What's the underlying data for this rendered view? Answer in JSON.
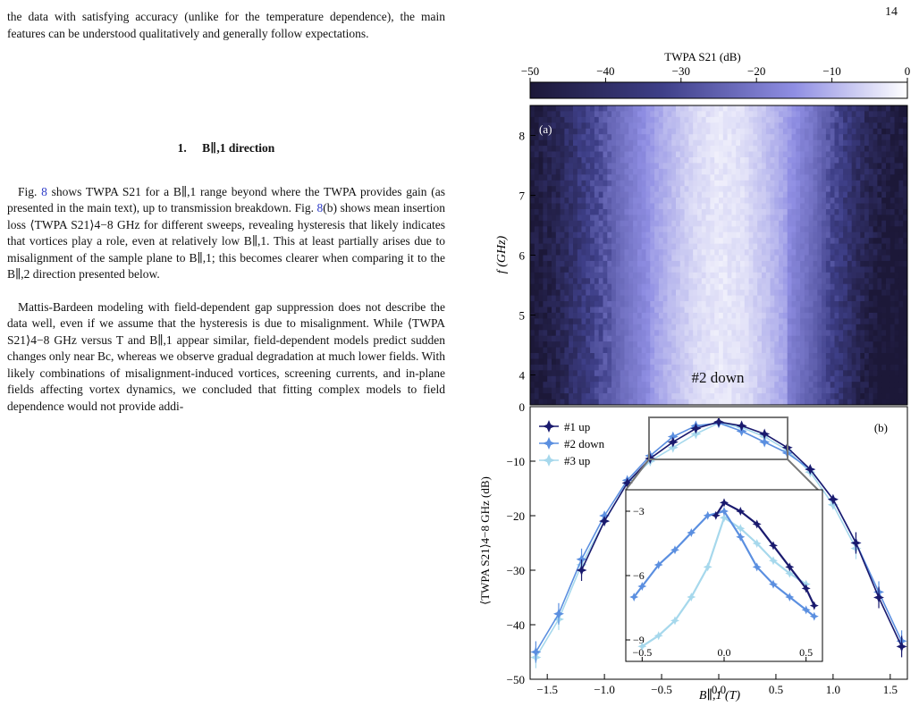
{
  "page_number": "14",
  "text": {
    "p_intro": "the data with satisfying accuracy (unlike for the temperature dependence), the main features can be understood qualitatively and generally follow expectations.",
    "section_num": "1.",
    "section_title": "B∥,1 direction",
    "p1_a": "Fig. ",
    "p1_ref": "8",
    "p1_b": " shows TWPA S21 for a B∥,1 range beyond where the TWPA provides gain (as presented in the main text), up to transmission breakdown. Fig. ",
    "p1_ref2": "8",
    "p1_c": "(b) shows mean insertion loss ⟨TWPA S21⟩4−8 GHz for different sweeps, revealing hysteresis that likely indicates that vortices play a role, even at relatively low B∥,1. This at least partially arises due to misalignment of the sample plane to B∥,1; this becomes clearer when comparing it to the B∥,2 direction presented below.",
    "p2": "Mattis-Bardeen modeling with field-dependent gap suppression does not describe the data well, even if we assume that the hysteresis is due to misalignment. While ⟨TWPA S21⟩4−8 GHz versus T and B∥,1 appear similar, field-dependent models predict sudden changes only near Bc, whereas we observe gradual degradation at much lower fields. With likely combinations of misalignment-induced vortices, screening currents, and in-plane fields affecting vortex dynamics, we concluded that fitting complex models to field dependence would not provide addi-"
  },
  "colorbar": {
    "title": "TWPA S21 (dB)",
    "ticks": [
      "−50",
      "−40",
      "−30",
      "−20",
      "−10",
      "0"
    ],
    "range": [
      -50,
      0
    ],
    "colors": [
      "#1c1838",
      "#3e3f88",
      "#8f8ee3",
      "#ffffff"
    ]
  },
  "panel_a": {
    "label": "(a)",
    "annotation": "#2 down",
    "ylabel": "f (GHz)",
    "yticks": [
      "4",
      "5",
      "6",
      "7",
      "8"
    ]
  },
  "panel_b": {
    "label": "(b)",
    "ylabel": "⟨TWPA S21⟩4−8 GHz (dB)",
    "xlabel": "B∥,1 (T)",
    "xticks": [
      "−1.5",
      "−1.0",
      "−0.5",
      "0.0",
      "0.5",
      "1.0",
      "1.5"
    ],
    "yticks": [
      "0",
      "−10",
      "−20",
      "−30",
      "−40",
      "−50"
    ],
    "legend": [
      "#1 up",
      "#2 down",
      "#3 up"
    ],
    "series_colors": [
      "#1a1a6e",
      "#5b8fe0",
      "#a6d8ec"
    ],
    "inset_xticks": [
      "−0.5",
      "0.0",
      "0.5"
    ],
    "inset_yticks": [
      "−3",
      "−6",
      "−9"
    ]
  },
  "chart_data": [
    {
      "type": "heatmap",
      "label": "(a)",
      "annotation": "#2 down",
      "xlabel": "",
      "ylabel": "f (GHz)",
      "xlim": [
        -1.6,
        1.6
      ],
      "ylim": [
        3.5,
        8.5
      ],
      "colorbar_label": "TWPA S21 (dB)",
      "zlim": [
        -50,
        0
      ],
      "profile_x": [
        -1.6,
        -1.4,
        -1.2,
        -1.0,
        -0.8,
        -0.6,
        -0.4,
        -0.2,
        0.0,
        0.2,
        0.4,
        0.6,
        0.8,
        1.0,
        1.2,
        1.4,
        1.6
      ],
      "profile_z_dB": [
        -48,
        -44,
        -36,
        -28,
        -20,
        -14,
        -9,
        -5,
        -3,
        -4,
        -8,
        -13,
        -20,
        -30,
        -40,
        -46,
        -48
      ]
    },
    {
      "type": "line",
      "label": "(b)",
      "xlabel": "B∥,1 (T)",
      "ylabel": "⟨TWPA S21⟩4−8 GHz (dB)",
      "xlim": [
        -1.65,
        1.65
      ],
      "ylim": [
        -50,
        0
      ],
      "legend_loc": "upper left",
      "series": [
        {
          "name": "#1 up",
          "x": [
            -1.2,
            -1.0,
            -0.8,
            -0.6,
            -0.4,
            -0.2,
            0.0,
            0.2,
            0.4,
            0.6,
            0.8,
            1.0,
            1.2,
            1.4,
            1.6
          ],
          "y": [
            -30,
            -21,
            -14,
            -9.5,
            -6.5,
            -4,
            -2.8,
            -3.5,
            -5,
            -7.5,
            -11.5,
            -17,
            -25,
            -35,
            -44
          ]
        },
        {
          "name": "#2 down",
          "x": [
            -1.6,
            -1.4,
            -1.2,
            -1.0,
            -0.8,
            -0.6,
            -0.4,
            -0.2,
            0.0,
            0.2,
            0.4,
            0.6,
            0.8,
            1.0,
            1.2,
            1.4,
            1.6
          ],
          "y": [
            -45,
            -38,
            -28,
            -20,
            -13.5,
            -9,
            -5.5,
            -3.5,
            -3,
            -4.5,
            -6.5,
            -8.5,
            -11.5,
            -17,
            -25,
            -34,
            -43
          ]
        },
        {
          "name": "#3 up",
          "x": [
            -1.6,
            -1.4,
            -1.2,
            -1.0,
            -0.8,
            -0.6,
            -0.4,
            -0.2,
            0.0,
            0.2,
            0.4,
            0.6,
            0.8,
            1.0,
            1.2
          ],
          "y": [
            -46,
            -39,
            -29,
            -21,
            -14,
            -10,
            -7.5,
            -5,
            -3,
            -3.8,
            -5.5,
            -8,
            -12,
            -18,
            -26
          ]
        }
      ]
    },
    {
      "type": "line",
      "label": "inset",
      "xlim": [
        -0.6,
        0.6
      ],
      "ylim": [
        -10,
        -2
      ],
      "series": [
        {
          "name": "#1 up",
          "x": [
            -0.05,
            0.0,
            0.1,
            0.2,
            0.3,
            0.4,
            0.5,
            0.55
          ],
          "y": [
            -3.2,
            -2.6,
            -3.0,
            -3.6,
            -4.6,
            -5.6,
            -6.6,
            -7.4
          ]
        },
        {
          "name": "#2 down",
          "x": [
            -0.55,
            -0.5,
            -0.4,
            -0.3,
            -0.2,
            -0.1,
            0.0,
            0.1,
            0.2,
            0.3,
            0.4,
            0.5,
            0.55
          ],
          "y": [
            -7.0,
            -6.5,
            -5.5,
            -4.8,
            -4.0,
            -3.2,
            -3.0,
            -4.2,
            -5.6,
            -6.4,
            -7.0,
            -7.6,
            -7.9
          ]
        },
        {
          "name": "#3 up",
          "x": [
            -0.5,
            -0.4,
            -0.3,
            -0.2,
            -0.1,
            0.0,
            0.1,
            0.2,
            0.3,
            0.4,
            0.5
          ],
          "y": [
            -9.3,
            -8.8,
            -8.1,
            -7.0,
            -5.6,
            -3.3,
            -3.8,
            -4.5,
            -5.3,
            -5.9,
            -6.4
          ]
        }
      ]
    }
  ]
}
